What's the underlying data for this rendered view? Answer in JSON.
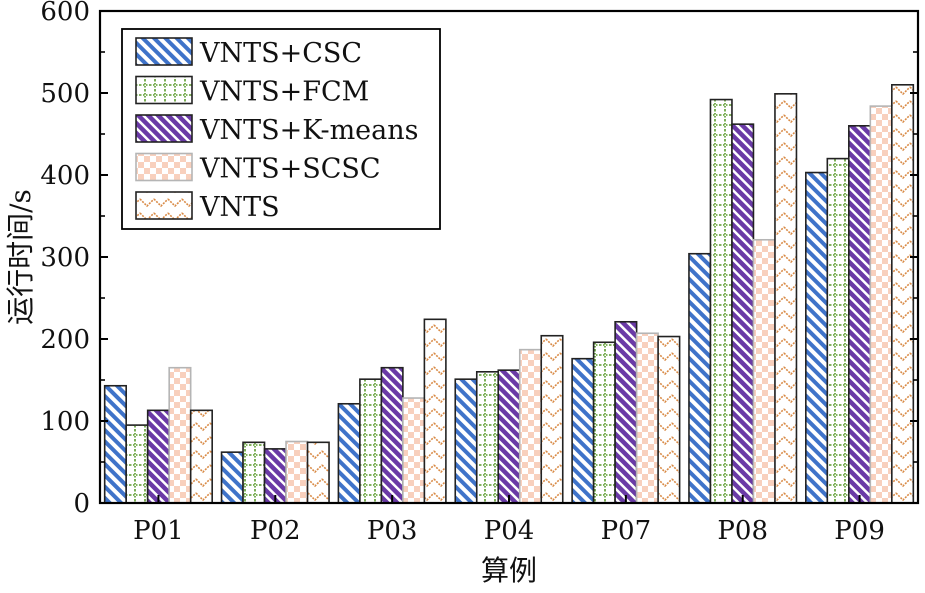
{
  "chart_data": {
    "type": "bar",
    "xlabel": "算例",
    "ylabel": "运行时间/s",
    "ylim": [
      0,
      600
    ],
    "yticks": [
      0,
      100,
      200,
      300,
      400,
      500,
      600
    ],
    "categories": [
      "P01",
      "P02",
      "P03",
      "P04",
      "P07",
      "P08",
      "P09"
    ],
    "legend_position": "top-left",
    "series": [
      {
        "name": "VNTS+CSC",
        "pattern": "diagonal-stripes",
        "color": "#3f73c9",
        "values": [
          143,
          62,
          121,
          151,
          176,
          304,
          403
        ]
      },
      {
        "name": "VNTS+FCM",
        "pattern": "dotted-grid",
        "color": "#5a9a2b",
        "values": [
          95,
          74,
          151,
          160,
          196,
          492,
          420
        ]
      },
      {
        "name": "VNTS+K-means",
        "pattern": "dense-diagonal",
        "color": "#6a3aa6",
        "values": [
          113,
          66,
          165,
          162,
          221,
          462,
          460
        ]
      },
      {
        "name": "VNTS+SCSC",
        "pattern": "checkerboard",
        "color": "#f6c8b2",
        "values": [
          165,
          75,
          128,
          187,
          207,
          321,
          484
        ]
      },
      {
        "name": "VNTS",
        "pattern": "zigzag",
        "color": "#d98a45",
        "values": [
          113,
          74,
          224,
          204,
          203,
          499,
          510
        ]
      }
    ]
  }
}
